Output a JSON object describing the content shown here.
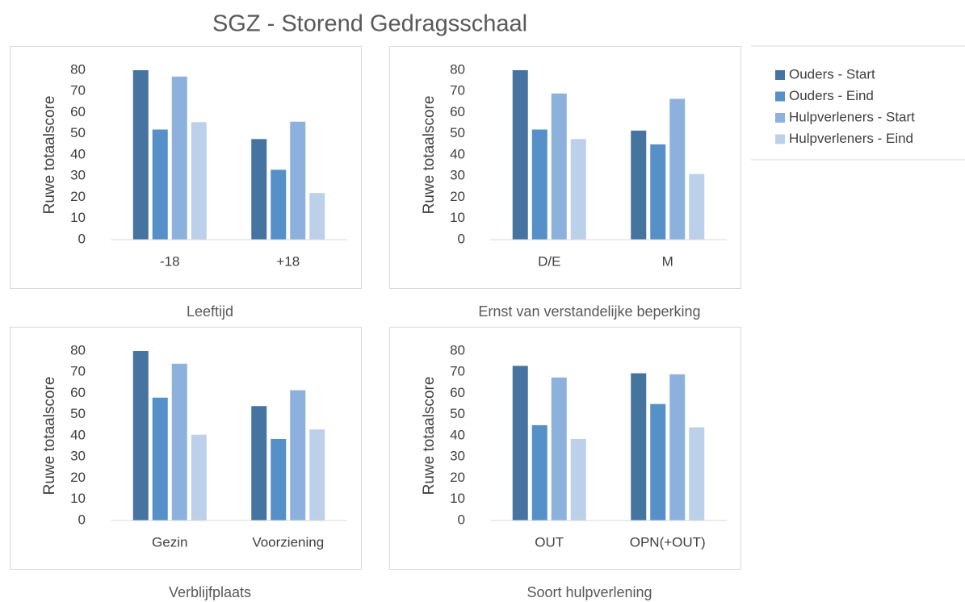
{
  "title": "SGZ - Storend Gedragsschaal",
  "chart_data": [
    {
      "type": "bar",
      "xlabel": "Leeftijd",
      "ylabel": "Ruwe totaalscore",
      "categories": [
        "-18",
        "+18"
      ],
      "ylim": [
        0,
        80
      ],
      "yticks": [
        0,
        10,
        20,
        30,
        40,
        50,
        60,
        70,
        80
      ],
      "series": [
        {
          "name": "Ouders - Start",
          "color": "#44749f",
          "values": [
            80,
            47.5
          ]
        },
        {
          "name": "Ouders - Eind",
          "color": "#5590c8",
          "values": [
            52,
            33
          ]
        },
        {
          "name": "Hulpverleners - Start",
          "color": "#8db1dd",
          "values": [
            77,
            55.7
          ]
        },
        {
          "name": "Hulpverleners - Eind",
          "color": "#bcd0ea",
          "values": [
            55.5,
            22
          ]
        }
      ]
    },
    {
      "type": "bar",
      "xlabel": "Ernst van verstandelijke beperking",
      "ylabel": "Ruwe totaalscore",
      "categories": [
        "D/E",
        "M"
      ],
      "ylim": [
        0,
        80
      ],
      "yticks": [
        0,
        10,
        20,
        30,
        40,
        50,
        60,
        70,
        80
      ],
      "series": [
        {
          "name": "Ouders - Start",
          "color": "#44749f",
          "values": [
            80,
            51.5
          ]
        },
        {
          "name": "Ouders - Eind",
          "color": "#5590c8",
          "values": [
            52,
            45
          ]
        },
        {
          "name": "Hulpverleners - Start",
          "color": "#8db1dd",
          "values": [
            69,
            66.5
          ]
        },
        {
          "name": "Hulpverleners - Eind",
          "color": "#bcd0ea",
          "values": [
            47.5,
            31
          ]
        }
      ]
    },
    {
      "type": "bar",
      "xlabel": "Verblijfplaats",
      "ylabel": "Ruwe totaalscore",
      "categories": [
        "Gezin",
        "Voorziening"
      ],
      "ylim": [
        0,
        80
      ],
      "yticks": [
        0,
        10,
        20,
        30,
        40,
        50,
        60,
        70,
        80
      ],
      "series": [
        {
          "name": "Ouders - Start",
          "color": "#44749f",
          "values": [
            80,
            54
          ]
        },
        {
          "name": "Ouders - Eind",
          "color": "#5590c8",
          "values": [
            58,
            38.5
          ]
        },
        {
          "name": "Hulpverleners - Start",
          "color": "#8db1dd",
          "values": [
            74,
            61.5
          ]
        },
        {
          "name": "Hulpverleners - Eind",
          "color": "#bcd0ea",
          "values": [
            40.5,
            43
          ]
        }
      ]
    },
    {
      "type": "bar",
      "xlabel": "Soort hulpverlening",
      "ylabel": "Ruwe totaalscore",
      "categories": [
        "OUT",
        "OPN(+OUT)"
      ],
      "ylim": [
        0,
        80
      ],
      "yticks": [
        0,
        10,
        20,
        30,
        40,
        50,
        60,
        70,
        80
      ],
      "series": [
        {
          "name": "Ouders - Start",
          "color": "#44749f",
          "values": [
            73,
            69.5
          ]
        },
        {
          "name": "Ouders - Eind",
          "color": "#5590c8",
          "values": [
            45,
            55
          ]
        },
        {
          "name": "Hulpverleners - Start",
          "color": "#8db1dd",
          "values": [
            67.5,
            69
          ]
        },
        {
          "name": "Hulpverleners - Eind",
          "color": "#bcd0ea",
          "values": [
            38.5,
            44
          ]
        }
      ]
    }
  ]
}
